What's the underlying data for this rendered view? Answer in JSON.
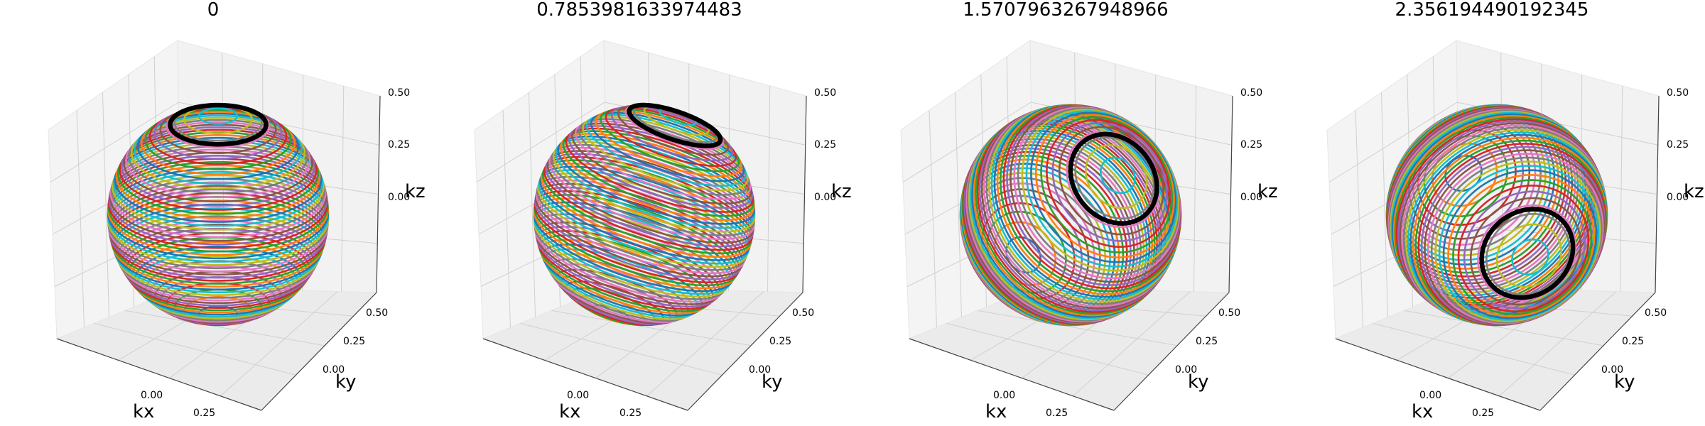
{
  "chart_data": [
    {
      "type": "line3d",
      "title": "0",
      "xlabel": "kx",
      "ylabel": "ky",
      "zlabel": "kz",
      "x_ticks": [
        "0.00",
        "0.25"
      ],
      "y_ticks": [
        "0.00",
        "0.25",
        "0.50"
      ],
      "z_ticks": [
        "0.00",
        "0.25",
        "0.50"
      ],
      "sphere_radius": 0.5,
      "rotation_angle": 0,
      "circle_count": 60,
      "highlight_circle_height": 0.45,
      "grid": true
    },
    {
      "type": "line3d",
      "title": "0.7853981633974483",
      "xlabel": "kx",
      "ylabel": "ky",
      "zlabel": "kz",
      "x_ticks": [
        "0.00",
        "0.25"
      ],
      "y_ticks": [
        "0.00",
        "0.25",
        "0.50"
      ],
      "z_ticks": [
        "0.00",
        "0.25",
        "0.50"
      ],
      "sphere_radius": 0.5,
      "rotation_angle": 0.7853981633974483,
      "circle_count": 60,
      "highlight_circle_height": 0.45,
      "grid": true
    },
    {
      "type": "line3d",
      "title": "1.5707963267948966",
      "xlabel": "kx",
      "ylabel": "ky",
      "zlabel": "kz",
      "x_ticks": [
        "0.00",
        "0.25"
      ],
      "y_ticks": [
        "0.00",
        "0.25",
        "0.50"
      ],
      "z_ticks": [
        "0.00",
        "0.25",
        "0.50"
      ],
      "sphere_radius": 0.5,
      "rotation_angle": 1.5707963267948966,
      "circle_count": 60,
      "highlight_circle_height": 0.45,
      "grid": true
    },
    {
      "type": "line3d",
      "title": "2.356194490192345",
      "xlabel": "kx",
      "ylabel": "ky",
      "zlabel": "kz",
      "x_ticks": [
        "0.00",
        "0.25"
      ],
      "y_ticks": [
        "0.00",
        "0.25",
        "0.50"
      ],
      "z_ticks": [
        "0.00",
        "0.25",
        "0.50"
      ],
      "sphere_radius": 0.5,
      "rotation_angle": 2.356194490192345,
      "circle_count": 60,
      "highlight_circle_height": 0.45,
      "grid": true
    }
  ],
  "colors": [
    "#1f77b4",
    "#ff7f0e",
    "#2ca02c",
    "#d62728",
    "#9467bd",
    "#8c564b",
    "#e377c2",
    "#7f7f7f",
    "#bcbd22",
    "#17becf"
  ],
  "highlight_color": "#000000"
}
